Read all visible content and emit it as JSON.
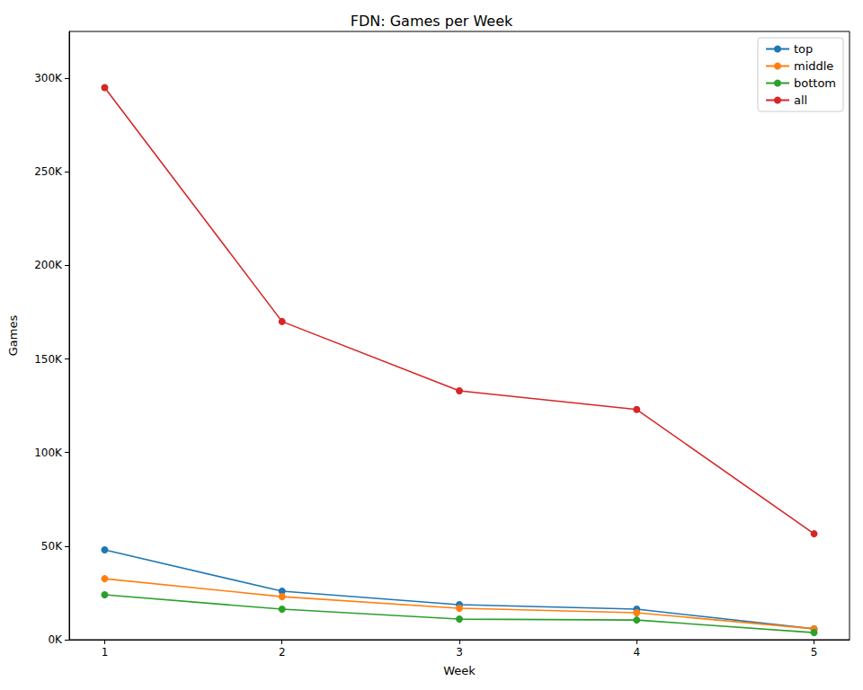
{
  "chart_data": {
    "type": "line",
    "title": "FDN: Games per Week",
    "x_label": "Week",
    "y_label": "Games",
    "x": [
      1,
      2,
      3,
      4,
      5
    ],
    "series": [
      {
        "name": "top",
        "color": "#1f77b4",
        "marker": "circle",
        "values": [
          48000,
          25900,
          18700,
          16300,
          5800
        ]
      },
      {
        "name": "middle",
        "color": "#ff7f0e",
        "marker": "circle",
        "values": [
          32600,
          23000,
          16800,
          14400,
          5800
        ]
      },
      {
        "name": "bottom",
        "color": "#2ca02c",
        "marker": "circle",
        "values": [
          24000,
          16300,
          11000,
          10500,
          3800
        ]
      },
      {
        "name": "all",
        "color": "#d62728",
        "marker": "circle",
        "values": [
          295000,
          170000,
          133000,
          123000,
          56600
        ]
      }
    ],
    "xlim": [
      0.8,
      5.2
    ],
    "xticks": [
      1,
      2,
      3,
      4,
      5
    ],
    "ylim": [
      0,
      325000
    ],
    "yticks": [
      {
        "value": 0,
        "label": "0K"
      },
      {
        "value": 50000,
        "label": "50K"
      },
      {
        "value": 100000,
        "label": "100K"
      },
      {
        "value": 150000,
        "label": "150K"
      },
      {
        "value": 200000,
        "label": "200K"
      },
      {
        "value": 250000,
        "label": "250K"
      },
      {
        "value": 300000,
        "label": "300K"
      }
    ],
    "grid": false,
    "legend": "upper right"
  }
}
